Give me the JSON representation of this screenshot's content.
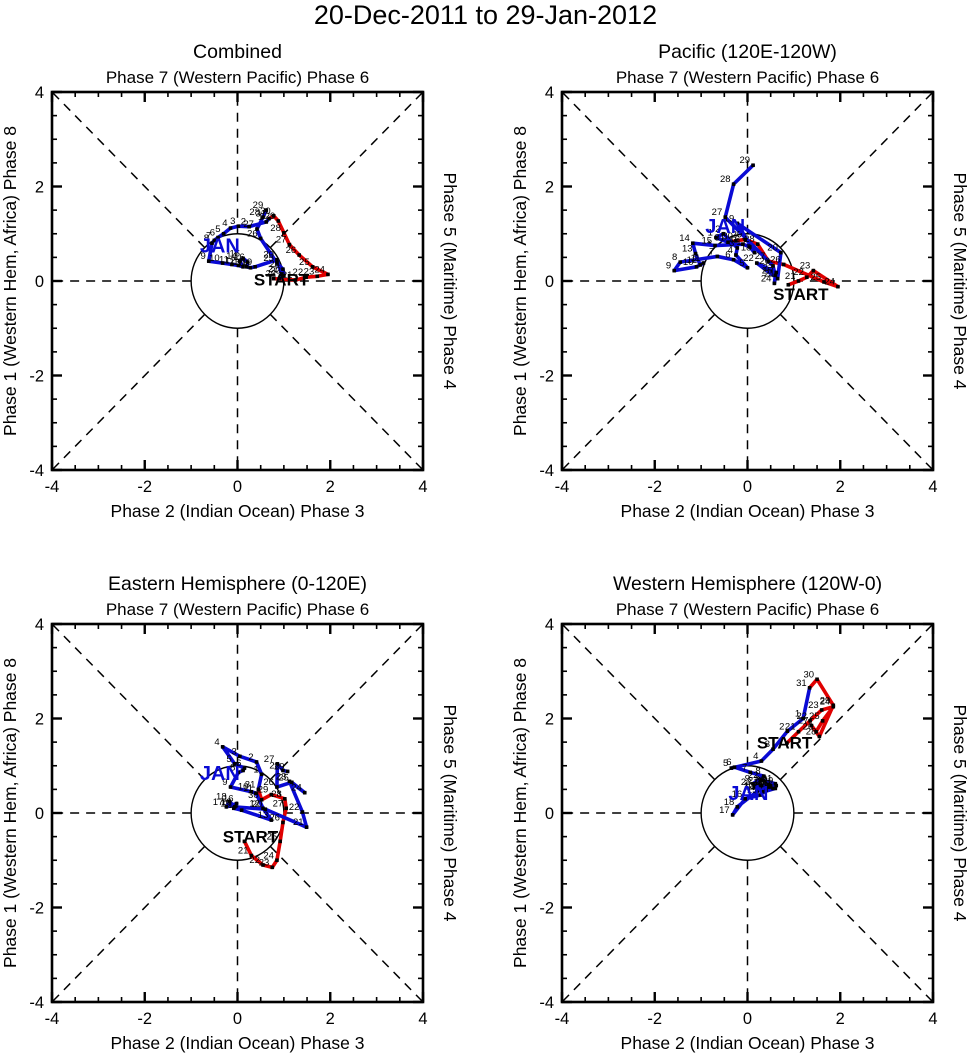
{
  "title": "20-Dec-2011 to 29-Jan-2012",
  "colors": {
    "december": "#e00000",
    "january": "#0a0ad4",
    "axis": "#000000",
    "label": "#000000"
  },
  "axes": {
    "top_label": "Phase 7 (Western Pacific) Phase 6",
    "bottom_label": "Phase 2 (Indian Ocean) Phase 3",
    "left_label": "Phase 1 (Western Hem, Africa) Phase 8",
    "right_label": "Phase 5 (Maritime) Phase 4",
    "xlim": [
      -4,
      4
    ],
    "ylim": [
      -4,
      4
    ],
    "major_ticks": [
      -4,
      -2,
      0,
      2,
      4
    ],
    "tick_labels": [
      "-4",
      "-2",
      "0",
      "2",
      "4"
    ],
    "minor_tick_step": 0.5,
    "unit_circle_radius": 1,
    "grid": "dashed-spokes"
  },
  "chart_data": [
    {
      "type": "line",
      "id": "combined",
      "title": "Combined",
      "subtitle": "Phase 7 (Western Pacific) Phase 6",
      "xlabel": "Phase 2 (Indian Ocean) Phase 3",
      "ylabel": "Phase 1 (Western Hem, Africa) Phase 8",
      "right_label": "Phase 5 (Maritime) Phase 4",
      "xlim": [
        -4,
        4
      ],
      "ylim": [
        -4,
        4
      ],
      "annotations": {
        "start": {
          "label": "START",
          "x": 0.95,
          "y": -0.1
        },
        "jan": {
          "label": "JAN",
          "x": -0.38,
          "y": 0.6
        }
      },
      "series": [
        {
          "name": "December 2011",
          "color_key": "december",
          "points": [
            [
              20,
              0.78,
              0.05
            ],
            [
              21,
              1.25,
              0.02
            ],
            [
              22,
              1.48,
              0.08
            ],
            [
              23,
              1.72,
              0.1
            ],
            [
              24,
              1.95,
              0.14
            ],
            [
              25,
              1.62,
              0.3
            ],
            [
              26,
              1.33,
              0.55
            ],
            [
              27,
              1.12,
              0.77
            ],
            [
              28,
              1.0,
              1.02
            ],
            [
              29,
              0.88,
              1.27
            ],
            [
              30,
              0.78,
              1.38
            ],
            [
              31,
              0.68,
              1.32
            ]
          ]
        },
        {
          "name": "January 2012",
          "color_key": "january",
          "points": [
            [
              1,
              0.62,
              1.25
            ],
            [
              2,
              0.25,
              1.15
            ],
            [
              3,
              0.02,
              1.16
            ],
            [
              4,
              -0.15,
              1.12
            ],
            [
              5,
              -0.3,
              1.0
            ],
            [
              6,
              -0.42,
              0.92
            ],
            [
              7,
              -0.5,
              0.86
            ],
            [
              8,
              -0.55,
              0.8
            ],
            [
              9,
              -0.62,
              0.42
            ],
            [
              10,
              -0.32,
              0.38
            ],
            [
              11,
              -0.12,
              0.35
            ],
            [
              12,
              0.02,
              0.33
            ],
            [
              13,
              0.12,
              0.3
            ],
            [
              14,
              0.05,
              0.42
            ],
            [
              15,
              0.12,
              0.48
            ],
            [
              16,
              0.22,
              0.4
            ],
            [
              17,
              0.2,
              0.3
            ],
            [
              18,
              0.28,
              0.28
            ],
            [
              19,
              0.38,
              0.3
            ],
            [
              20,
              0.85,
              0.45
            ],
            [
              21,
              0.95,
              0.15
            ],
            [
              22,
              0.9,
              0.05
            ],
            [
              23,
              1.0,
              0.12
            ],
            [
              24,
              0.98,
              0.25
            ],
            [
              25,
              0.85,
              0.38
            ],
            [
              26,
              0.5,
              0.9
            ],
            [
              27,
              0.42,
              1.1
            ],
            [
              28,
              0.55,
              1.35
            ],
            [
              29,
              0.62,
              1.5
            ]
          ]
        }
      ]
    },
    {
      "type": "line",
      "id": "pacific",
      "title": "Pacific (120E-120W)",
      "subtitle": "Phase 7 (Western Pacific) Phase 6",
      "xlabel": "Phase 2 (Indian Ocean) Phase 3",
      "ylabel": "Phase 1 (Western Hem, Africa) Phase 8",
      "right_label": "Phase 5 (Maritime) Phase 4",
      "xlim": [
        -4,
        4
      ],
      "ylim": [
        -4,
        4
      ],
      "annotations": {
        "start": {
          "label": "START",
          "x": 1.15,
          "y": -0.4
        },
        "jan": {
          "label": "JAN",
          "x": -0.48,
          "y": 1.02
        }
      },
      "series": [
        {
          "name": "December 2011",
          "color_key": "december",
          "points": [
            [
              20,
              0.88,
              -0.08
            ],
            [
              21,
              1.1,
              0.0
            ],
            [
              22,
              1.28,
              0.08
            ],
            [
              23,
              1.42,
              0.22
            ],
            [
              24,
              1.95,
              -0.12
            ],
            [
              25,
              1.65,
              -0.02
            ],
            [
              26,
              0.78,
              0.35
            ],
            [
              27,
              0.45,
              0.42
            ],
            [
              28,
              0.22,
              0.78
            ],
            [
              29,
              -0.05,
              0.88
            ],
            [
              30,
              -0.25,
              0.85
            ],
            [
              31,
              -0.42,
              0.82
            ]
          ]
        },
        {
          "name": "January 2012",
          "color_key": "january",
          "points": [
            [
              1,
              -0.68,
              0.92
            ],
            [
              2,
              -0.52,
              1.0
            ],
            [
              3,
              -0.22,
              0.7
            ],
            [
              4,
              -0.25,
              0.55
            ],
            [
              5,
              0.0,
              0.28
            ],
            [
              6,
              -0.3,
              0.45
            ],
            [
              7,
              -0.65,
              0.52
            ],
            [
              8,
              -1.45,
              0.4
            ],
            [
              9,
              -1.58,
              0.22
            ],
            [
              10,
              -1.1,
              0.3
            ],
            [
              11,
              -0.95,
              0.38
            ],
            [
              12,
              -1.02,
              0.34
            ],
            [
              13,
              -1.12,
              0.58
            ],
            [
              14,
              -1.18,
              0.8
            ],
            [
              15,
              -0.7,
              0.75
            ],
            [
              16,
              -0.1,
              0.78
            ],
            [
              17,
              0.05,
              0.72
            ],
            [
              18,
              0.15,
              0.6
            ],
            [
              19,
              -0.22,
              1.22
            ],
            [
              20,
              0.72,
              0.6
            ],
            [
              21,
              0.65,
              0.05
            ],
            [
              22,
              0.2,
              0.38
            ],
            [
              23,
              0.62,
              0.18
            ],
            [
              24,
              0.58,
              -0.05
            ],
            [
              25,
              0.6,
              0.12
            ],
            [
              26,
              0.55,
              0.32
            ],
            [
              27,
              -0.48,
              1.35
            ],
            [
              28,
              -0.3,
              2.05
            ],
            [
              29,
              0.12,
              2.45
            ]
          ]
        }
      ]
    },
    {
      "type": "line",
      "id": "eastern",
      "title": "Eastern Hemisphere (0-120E)",
      "subtitle": "Phase 7 (Western Pacific) Phase 6",
      "xlabel": "Phase 2 (Indian Ocean) Phase 3",
      "ylabel": "Phase 1 (Western Hem, Africa) Phase 8",
      "right_label": "Phase 5 (Maritime) Phase 4",
      "xlim": [
        -4,
        4
      ],
      "ylim": [
        -4,
        4
      ],
      "annotations": {
        "start": {
          "label": "START",
          "x": 0.28,
          "y": -0.62
        },
        "jan": {
          "label": "JAN",
          "x": -0.38,
          "y": 0.7
        }
      },
      "series": [
        {
          "name": "December 2011",
          "color_key": "december",
          "points": [
            [
              20,
              0.15,
              -0.6
            ],
            [
              21,
              0.3,
              -0.9
            ],
            [
              22,
              0.55,
              -1.1
            ],
            [
              23,
              0.75,
              -1.15
            ],
            [
              24,
              0.85,
              -1.0
            ],
            [
              25,
              0.92,
              -0.6
            ],
            [
              26,
              0.98,
              -0.2
            ],
            [
              27,
              1.05,
              0.1
            ],
            [
              28,
              1.02,
              0.3
            ],
            [
              29,
              0.73,
              0.39
            ],
            [
              30,
              0.52,
              0.28
            ],
            [
              31,
              0.45,
              0.5
            ]
          ]
        },
        {
          "name": "January 2012",
          "color_key": "january",
          "points": [
            [
              1,
              0.52,
              0.82
            ],
            [
              2,
              0.41,
              1.08
            ],
            [
              3,
              0.05,
              1.2
            ],
            [
              4,
              -0.32,
              1.4
            ],
            [
              5,
              -0.06,
              1.04
            ],
            [
              6,
              0.15,
              0.95
            ],
            [
              7,
              0.12,
              0.9
            ],
            [
              8,
              0.02,
              0.86
            ],
            [
              9,
              -0.15,
              0.55
            ],
            [
              10,
              0.3,
              0.45
            ],
            [
              11,
              0.4,
              0.42
            ],
            [
              12,
              0.55,
              0.1
            ],
            [
              13,
              0.73,
              -0.15
            ],
            [
              14,
              0.09,
              0.06
            ],
            [
              15,
              -0.08,
              0.1
            ],
            [
              16,
              -0.02,
              0.2
            ],
            [
              17,
              -0.24,
              0.13
            ],
            [
              18,
              -0.17,
              0.24
            ],
            [
              19,
              -0.06,
              0.13
            ],
            [
              20,
              0.6,
              0.08
            ],
            [
              21,
              1.49,
              -0.3
            ],
            [
              22,
              1.4,
              0.02
            ],
            [
              23,
              1.12,
              0.67
            ],
            [
              24,
              1.45,
              0.43
            ],
            [
              25,
              1.17,
              0.65
            ],
            [
              26,
              0.85,
              0.55
            ],
            [
              27,
              0.86,
              1.04
            ],
            [
              28,
              0.98,
              0.9
            ],
            [
              29,
              1.08,
              0.88
            ]
          ]
        }
      ]
    },
    {
      "type": "line",
      "id": "western",
      "title": "Western Hemisphere (120W-0)",
      "subtitle": "Phase 7 (Western Pacific) Phase 6",
      "xlabel": "Phase 2 (Indian Ocean) Phase 3",
      "ylabel": "Phase 1 (Western Hem, Africa) Phase 8",
      "right_label": "Phase 5 (Maritime) Phase 4",
      "xlim": [
        -4,
        4
      ],
      "ylim": [
        -4,
        4
      ],
      "annotations": {
        "start": {
          "label": "START",
          "x": 0.8,
          "y": 1.36
        },
        "jan": {
          "label": "JAN",
          "x": 0.02,
          "y": 0.28
        }
      },
      "series": [
        {
          "name": "December 2011",
          "color_key": "december",
          "points": [
            [
              20,
              0.85,
              1.48
            ],
            [
              21,
              1.1,
              1.72
            ],
            [
              22,
              1.35,
              1.95
            ],
            [
              23,
              1.6,
              2.18
            ],
            [
              24,
              1.85,
              2.25
            ],
            [
              25,
              1.62,
              1.95
            ],
            [
              26,
              1.48,
              1.72
            ],
            [
              27,
              1.38,
              1.85
            ],
            [
              28,
              1.55,
              1.62
            ],
            [
              29,
              1.85,
              2.28
            ],
            [
              30,
              1.5,
              2.83
            ],
            [
              31,
              1.34,
              2.65
            ]
          ]
        },
        {
          "name": "January 2012",
          "color_key": "january",
          "points": [
            [
              1,
              1.2,
              2.0
            ],
            [
              2,
              0.86,
              1.73
            ],
            [
              3,
              0.55,
              1.35
            ],
            [
              4,
              0.3,
              1.1
            ],
            [
              5,
              -0.35,
              0.95
            ],
            [
              6,
              -0.28,
              0.97
            ],
            [
              7,
              0.06,
              0.86
            ],
            [
              8,
              0.35,
              0.78
            ],
            [
              9,
              0.12,
              0.62
            ],
            [
              10,
              0.42,
              0.55
            ],
            [
              11,
              0.6,
              0.52
            ],
            [
              12,
              0.35,
              0.45
            ],
            [
              13,
              0.22,
              0.48
            ],
            [
              14,
              0.5,
              0.58
            ],
            [
              15,
              0.28,
              0.38
            ],
            [
              16,
              -0.05,
              0.3
            ],
            [
              17,
              -0.32,
              -0.04
            ],
            [
              18,
              -0.22,
              0.13
            ],
            [
              19,
              0.2,
              0.45
            ],
            [
              20,
              0.45,
              0.55
            ],
            [
              21,
              0.6,
              0.62
            ],
            [
              22,
              0.3,
              0.7
            ],
            [
              23,
              0.15,
              0.55
            ],
            [
              24,
              0.4,
              0.48
            ],
            [
              25,
              0.55,
              0.52
            ],
            [
              26,
              0.45,
              0.6
            ],
            [
              27,
              0.3,
              0.58
            ],
            [
              28,
              0.5,
              0.55
            ],
            [
              29,
              0.62,
              0.58
            ]
          ]
        }
      ]
    }
  ]
}
